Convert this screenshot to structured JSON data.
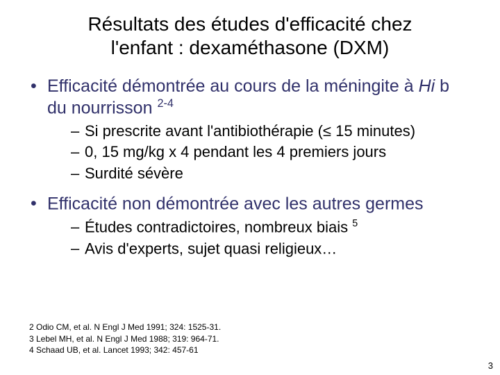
{
  "title": {
    "line1": "Résultats des études d'efficacité chez",
    "line2": "l'enfant : dexaméthasone (DXM)"
  },
  "bullets": [
    {
      "text_pre": "Efficacité démontrée au cours de la méningite à ",
      "text_italic": "Hi",
      "text_post": " b du nourrisson ",
      "sup": "2-4",
      "sub": [
        "Si prescrite avant l'antibiothérapie (≤ 15 minutes)",
        "0, 15 mg/kg x 4 pendant les 4 premiers jours",
        "Surdité sévère"
      ]
    },
    {
      "text_pre": "Efficacité non démontrée avec les autres germes",
      "text_italic": "",
      "text_post": "",
      "sup": "",
      "sub": [
        {
          "t": "Études contradictoires, nombreux biais ",
          "sup": "5"
        },
        {
          "t": "Avis d'experts, sujet quasi religieux…",
          "sup": ""
        }
      ]
    }
  ],
  "refs": [
    "2 Odio CM, et al. N Engl J Med 1991; 324: 1525-31.",
    "3 Lebel MH, et al. N Engl J Med 1988; 319: 964-71.",
    "4 Schaad UB, et al. Lancet 1993; 342: 457-61"
  ],
  "page_number": "3",
  "colors": {
    "bullet1_text": "#30306a",
    "body_text": "#000000",
    "background": "#ffffff"
  },
  "fonts": {
    "title_size_pt": 28,
    "level1_size_pt": 25,
    "level2_size_pt": 22,
    "refs_size_pt": 12
  }
}
